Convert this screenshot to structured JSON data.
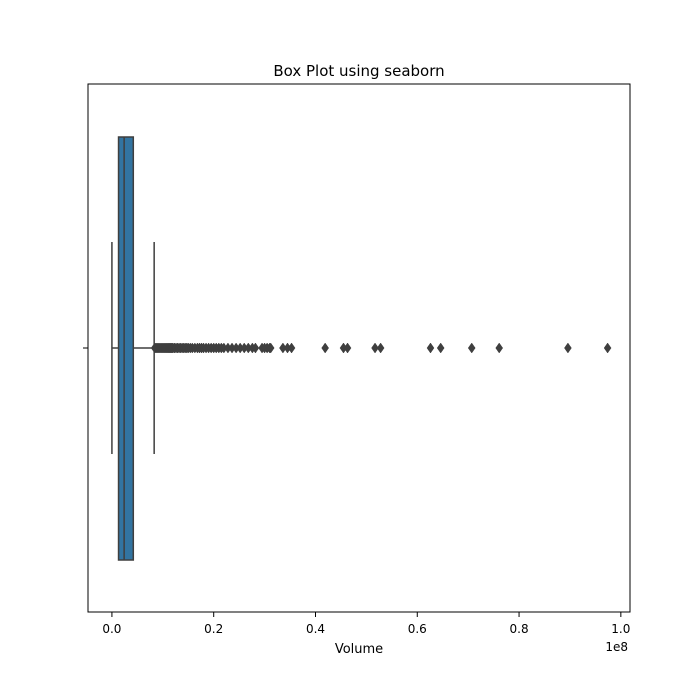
{
  "chart_data": {
    "type": "box",
    "title": "Box Plot using seaborn",
    "xlabel": "Volume",
    "ylabel": "",
    "x_scale_label": "1e8",
    "orientation": "horizontal",
    "xlim": [
      -0.047,
      1.018
    ],
    "x_tick_values": [
      0.0,
      0.2,
      0.4,
      0.6,
      0.8,
      1.0
    ],
    "x_tick_labels": [
      "0.0",
      "0.2",
      "0.4",
      "0.6",
      "0.8",
      "1.0"
    ],
    "grid": false,
    "legend": "none",
    "box": {
      "whisker_low": 0.0,
      "q1": 0.013,
      "median": 0.024,
      "q3": 0.042,
      "whisker_high": 0.083,
      "color": "#3274a1"
    },
    "outliers": [
      0.084,
      0.086,
      0.088,
      0.09,
      0.092,
      0.094,
      0.096,
      0.098,
      0.1,
      0.102,
      0.104,
      0.106,
      0.108,
      0.11,
      0.112,
      0.114,
      0.116,
      0.118,
      0.12,
      0.123,
      0.126,
      0.129,
      0.132,
      0.135,
      0.138,
      0.141,
      0.144,
      0.147,
      0.15,
      0.154,
      0.158,
      0.163,
      0.168,
      0.172,
      0.176,
      0.18,
      0.185,
      0.19,
      0.195,
      0.2,
      0.205,
      0.21,
      0.215,
      0.22,
      0.228,
      0.236,
      0.244,
      0.252,
      0.26,
      0.268,
      0.276,
      0.282,
      0.295,
      0.3,
      0.305,
      0.31,
      0.312,
      0.336,
      0.345,
      0.353,
      0.419,
      0.455,
      0.463,
      0.517,
      0.528,
      0.626,
      0.646,
      0.707,
      0.761,
      0.896,
      0.974
    ]
  }
}
